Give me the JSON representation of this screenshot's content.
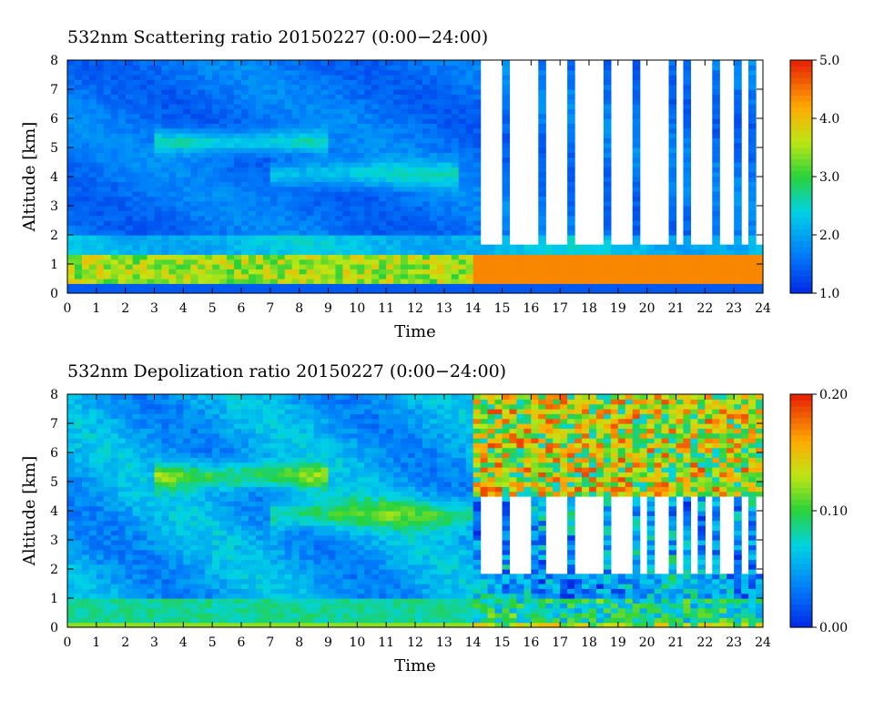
{
  "chart_data": [
    {
      "type": "heatmap",
      "title": "532nm Scattering ratio  20150227 (0:00−24:00)",
      "xlabel": "Time",
      "ylabel": "Altitude [km]",
      "x_ticks": [
        "0",
        "1",
        "2",
        "3",
        "4",
        "5",
        "6",
        "7",
        "8",
        "9",
        "10",
        "11",
        "12",
        "13",
        "14",
        "15",
        "16",
        "17",
        "18",
        "19",
        "20",
        "21",
        "22",
        "23",
        "24"
      ],
      "y_ticks": [
        "0",
        "1",
        "2",
        "3",
        "4",
        "5",
        "6",
        "7",
        "8"
      ],
      "xlim": [
        0,
        24
      ],
      "ylim": [
        0,
        8
      ],
      "colorbar": {
        "min": 1.0,
        "max": 5.0,
        "labels": [
          "1.0",
          "2.0",
          "3.0",
          "4.0",
          "5.0"
        ]
      },
      "features": {
        "background_value": 1.7,
        "aerosol_layer_km": [
          0.4,
          1.4
        ],
        "aerosol_layer_value": 3.6,
        "elevated_layers": [
          {
            "t": [
              3,
              9
            ],
            "z_km": 5.2,
            "value": 2.4
          },
          {
            "t": [
              7,
              13.5
            ],
            "z_km": 4.1,
            "value": 2.2
          }
        ],
        "clouds_start_hour": 14,
        "cloud_base_km": 1.6,
        "cloud_value": "above 5.0"
      }
    },
    {
      "type": "heatmap",
      "title": "532nm Depolization ratio  20150227 (0:00−24:00)",
      "xlabel": "Time",
      "ylabel": "Altitude [km]",
      "x_ticks": [
        "0",
        "1",
        "2",
        "3",
        "4",
        "5",
        "6",
        "7",
        "8",
        "9",
        "10",
        "11",
        "12",
        "13",
        "14",
        "15",
        "16",
        "17",
        "18",
        "19",
        "20",
        "21",
        "22",
        "23",
        "24"
      ],
      "y_ticks": [
        "0",
        "1",
        "2",
        "3",
        "4",
        "5",
        "6",
        "7",
        "8"
      ],
      "xlim": [
        0,
        24
      ],
      "ylim": [
        0,
        8
      ],
      "colorbar": {
        "min": 0.0,
        "max": 0.2,
        "labels": [
          "0.00",
          "0.10",
          "0.20"
        ]
      },
      "features": {
        "background_value": 0.05,
        "low_layer_km": [
          0,
          1.0
        ],
        "low_layer_value": 0.08,
        "elevated_layers": [
          {
            "t": [
              3,
              9
            ],
            "z_km": 5.2,
            "value": 0.11
          },
          {
            "t": [
              7,
              14
            ],
            "z_km": 3.9,
            "value": 0.1
          }
        ],
        "clouds_start_hour": 14,
        "cloud_top_value": 0.19
      }
    }
  ]
}
